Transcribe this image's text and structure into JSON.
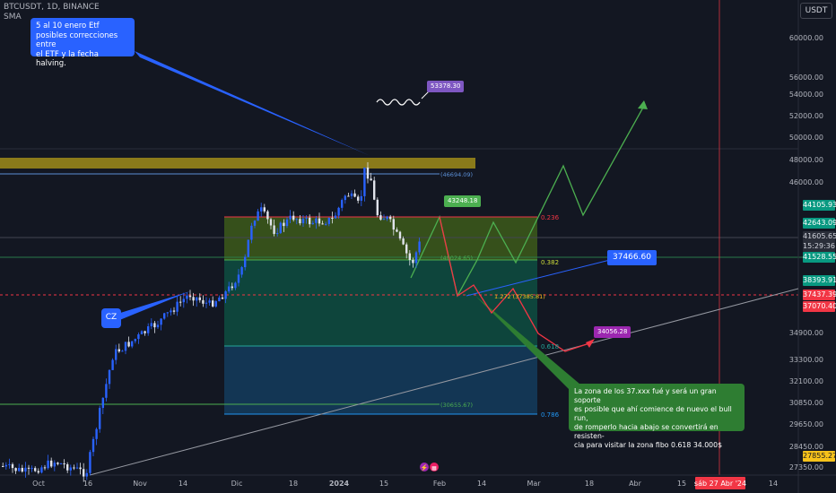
{
  "header": {
    "symbol_line": "BTCUSDT, 1D, BINANCE",
    "indicator": "SMA",
    "currency": "USDT"
  },
  "chart_data": {
    "type": "candlestick",
    "symbol": "BTCUSDT",
    "interval": "1D",
    "exchange": "BINANCE",
    "price_axis_ticks": [
      "60000.00",
      "56000.00",
      "54000.00",
      "52000.00",
      "50000.00",
      "48000.00",
      "46000.00",
      "34900.00",
      "33300.00",
      "32100.00",
      "30850.00",
      "29650.00",
      "28450.00",
      "27350.00"
    ],
    "time_axis_ticks": [
      "Oct",
      "16",
      "Nov",
      "14",
      "Dic",
      "18",
      "2024",
      "15",
      "Feb",
      "14",
      "Mar",
      "18",
      "Abr",
      "15",
      "14"
    ],
    "time_cursor_label": "sáb 27 Abr '24",
    "axis_labels": [
      {
        "value": "44105.93",
        "color": "#089981"
      },
      {
        "value": "42643.09",
        "color": "#089981"
      },
      {
        "value": "41605.65",
        "color": "#2a2e39"
      },
      {
        "value": "15:29:36",
        "color": "#2a2e39"
      },
      {
        "value": "41528.55",
        "color": "#089981"
      },
      {
        "value": "38393.91",
        "color": "#089981"
      },
      {
        "value": "37437.39",
        "color": "#f23645"
      },
      {
        "value": "37070.40",
        "color": "#f23645"
      },
      {
        "value": "27855.27",
        "color": "#f7c21a"
      }
    ],
    "fibonacci_levels": [
      {
        "ratio": "0.236",
        "price": "42400"
      },
      {
        "ratio": "0.382",
        "price": "40024.65"
      },
      {
        "ratio": "0.618",
        "price": "34900"
      },
      {
        "ratio": "0.786",
        "price": "30655.67"
      }
    ],
    "level_labels": [
      {
        "text": "(46694.09)",
        "price": 46694.09
      },
      {
        "text": "(40024.65)",
        "price": 40024.65
      },
      {
        "text": "1.272 (37385.81)",
        "price": 37385.81
      },
      {
        "text": "(30655.67)",
        "price": 30655.67
      }
    ],
    "price_tags": [
      {
        "text": "53378.30",
        "color": "#7e57c2"
      },
      {
        "text": "43248.18",
        "color": "#4caf50"
      },
      {
        "text": "37466.60",
        "color": "#2962ff"
      },
      {
        "text": "34056.28",
        "color": "#9c27b0"
      }
    ],
    "annotations": [
      {
        "text": "5 al 10 enero Etf\nposibles correcciones entre\nel ETF y la fecha halving.",
        "color": "#2962ff"
      },
      {
        "text": "CZ",
        "color": "#2962ff"
      },
      {
        "text": "La zona de los 37.xxx  fué y será un gran soporte\nes posible que ahí comience de nuevo el bull run,\nde romperlo hacia abajo se convertirá en resisten-\ncia para visitar la zona fibo 0.618    34.000$",
        "color": "#2e7d32"
      }
    ]
  }
}
